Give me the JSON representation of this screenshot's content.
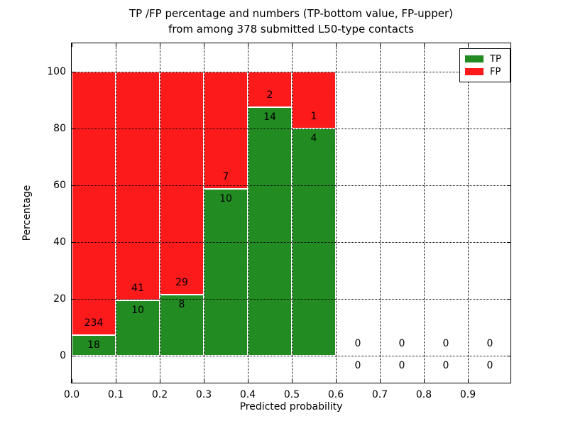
{
  "chart_data": {
    "type": "bar",
    "stacked": true,
    "normalization": "each bin scaled to 100 percent",
    "title_line1": "TP /FP percentage and numbers (TP-bottom value, FP-upper)",
    "title_line2": "from among 378 submitted L50-type contacts",
    "xlabel": "Predicted probability",
    "ylabel": "Percentage",
    "total_contacts": 378,
    "xlim": [
      0.0,
      1.0
    ],
    "ylim": [
      -10,
      110
    ],
    "x_ticks": [
      "0.0",
      "0.1",
      "0.2",
      "0.3",
      "0.4",
      "0.5",
      "0.6",
      "0.7",
      "0.8",
      "0.9"
    ],
    "y_ticks": [
      "0",
      "20",
      "40",
      "60",
      "80",
      "100"
    ],
    "grid": "dotted, drawn above bars",
    "bin_width": 0.1,
    "bins": [
      {
        "range": "0.0-0.1",
        "x_start": 0.0,
        "tp": 18,
        "fp": 234,
        "tp_pct": 7.1,
        "fp_pct": 92.9
      },
      {
        "range": "0.1-0.2",
        "x_start": 0.1,
        "tp": 10,
        "fp": 41,
        "tp_pct": 19.6,
        "fp_pct": 80.4
      },
      {
        "range": "0.2-0.3",
        "x_start": 0.2,
        "tp": 8,
        "fp": 29,
        "tp_pct": 21.6,
        "fp_pct": 78.4
      },
      {
        "range": "0.3-0.4",
        "x_start": 0.3,
        "tp": 10,
        "fp": 7,
        "tp_pct": 58.8,
        "fp_pct": 41.2
      },
      {
        "range": "0.4-0.5",
        "x_start": 0.4,
        "tp": 14,
        "fp": 2,
        "tp_pct": 87.5,
        "fp_pct": 12.5
      },
      {
        "range": "0.5-0.6",
        "x_start": 0.5,
        "tp": 4,
        "fp": 1,
        "tp_pct": 80.0,
        "fp_pct": 20.0
      },
      {
        "range": "0.6-0.7",
        "x_start": 0.6,
        "tp": 0,
        "fp": 0,
        "tp_pct": 0,
        "fp_pct": 0
      },
      {
        "range": "0.7-0.8",
        "x_start": 0.7,
        "tp": 0,
        "fp": 0,
        "tp_pct": 0,
        "fp_pct": 0
      },
      {
        "range": "0.8-0.9",
        "x_start": 0.8,
        "tp": 0,
        "fp": 0,
        "tp_pct": 0,
        "fp_pct": 0
      },
      {
        "range": "0.9-1.0",
        "x_start": 0.9,
        "tp": 0,
        "fp": 0,
        "tp_pct": 0,
        "fp_pct": 0
      }
    ],
    "legend": [
      {
        "label": "TP",
        "color": "#228B22"
      },
      {
        "label": "FP",
        "color": "#FC1A1A"
      }
    ],
    "legend_position": "upper right",
    "colors": {
      "tp_bar": "#228B22",
      "fp_bar": "#FC1A1A",
      "bar_edge": "#ffffff",
      "grid": "#000000",
      "spine": "#000000",
      "text": "#000000",
      "background": "#ffffff"
    }
  }
}
